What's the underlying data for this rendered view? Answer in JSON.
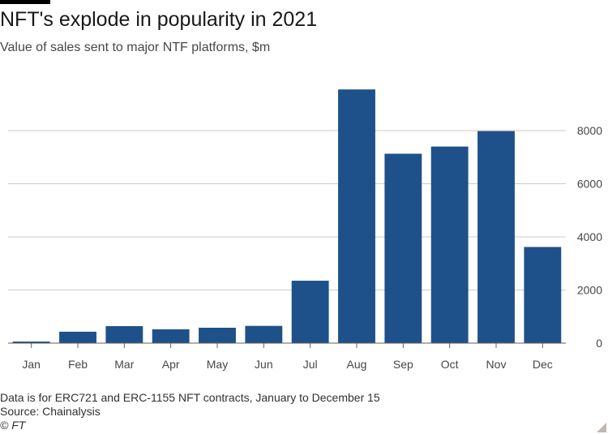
{
  "header": {
    "title": "NFT's explode in popularity in 2021",
    "subtitle": "Value of sales sent to major NTF platforms, $m"
  },
  "chart_data": {
    "type": "bar",
    "title": "NFT's explode in popularity in 2021",
    "subtitle": "Value of sales sent to major NTF platforms, $m",
    "categories": [
      "Jan",
      "Feb",
      "Mar",
      "Apr",
      "May",
      "Jun",
      "Jul",
      "Aug",
      "Sep",
      "Oct",
      "Nov",
      "Dec"
    ],
    "values": [
      60,
      430,
      640,
      520,
      580,
      650,
      2350,
      9550,
      7130,
      7400,
      7980,
      3620
    ],
    "ylim": [
      0,
      10000
    ],
    "yticks": [
      0,
      2000,
      4000,
      6000,
      8000
    ],
    "y_axis_position": "right",
    "grid": true,
    "bar_color": "#1e5189",
    "xlabel": "",
    "ylabel": ""
  },
  "footer": {
    "note": "Data is for ERC721 and ERC-1155 NFT contracts, January to December 15",
    "source": "Source: Chainalysis",
    "credit": "© FT"
  }
}
